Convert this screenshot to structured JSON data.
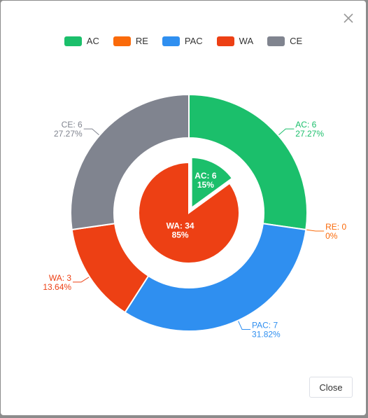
{
  "dialog": {
    "close_button_label": "Close"
  },
  "colors": {
    "AC": "#1bbf6b",
    "RE": "#fa6a0a",
    "PAC": "#2f8ff0",
    "WA": "#ed4014",
    "CE": "#80848f"
  },
  "chart_data": {
    "type": "pie",
    "legend": [
      "AC",
      "RE",
      "PAC",
      "WA",
      "CE"
    ],
    "legend_position": "top-center",
    "outer_ring": [
      {
        "name": "AC",
        "value": 6,
        "percent": "27.27%"
      },
      {
        "name": "RE",
        "value": 0,
        "percent": "0%"
      },
      {
        "name": "PAC",
        "value": 7,
        "percent": "31.82%"
      },
      {
        "name": "WA",
        "value": 3,
        "percent": "13.64%"
      },
      {
        "name": "CE",
        "value": 6,
        "percent": "27.27%"
      }
    ],
    "inner_pie": [
      {
        "name": "AC",
        "value": 6,
        "percent": "15%"
      },
      {
        "name": "WA",
        "value": 34,
        "percent": "85%"
      }
    ]
  }
}
